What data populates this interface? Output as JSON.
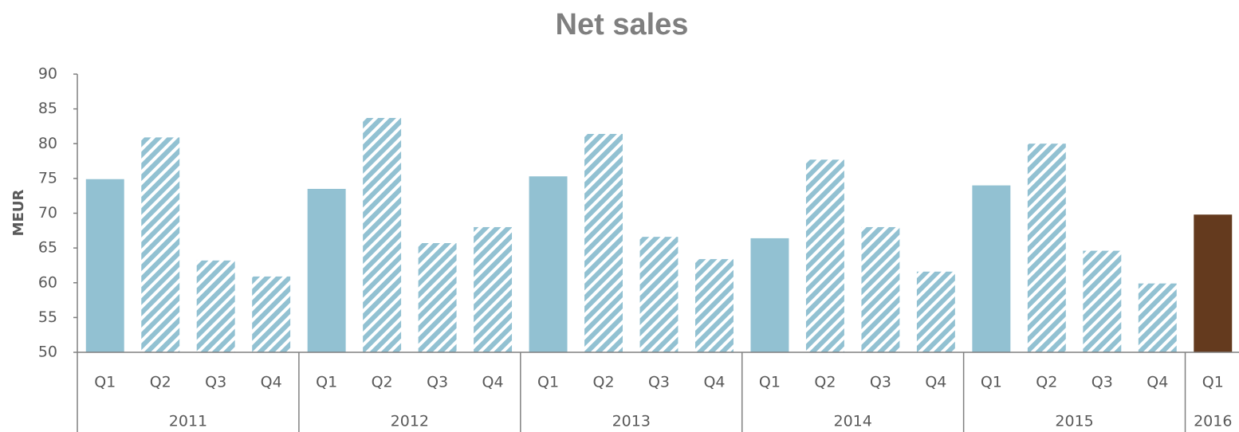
{
  "chart_data": {
    "type": "bar",
    "title": "Net sales",
    "y_label": "MEUR",
    "ylim": [
      50,
      90
    ],
    "yticks": [
      50,
      55,
      60,
      65,
      70,
      75,
      80,
      85,
      90
    ],
    "grid": false,
    "color": "#92c1d2",
    "highlight_color": "#643a1e",
    "groups": [
      {
        "name": "2011",
        "categories": [
          "Q1",
          "Q2",
          "Q3",
          "Q4"
        ],
        "values": [
          74.9,
          80.9,
          63.2,
          60.9
        ],
        "patterns": [
          "solid",
          "hatched",
          "hatched",
          "hatched"
        ]
      },
      {
        "name": "2012",
        "categories": [
          "Q1",
          "Q2",
          "Q3",
          "Q4"
        ],
        "values": [
          73.5,
          83.7,
          65.7,
          68.0
        ],
        "patterns": [
          "solid",
          "hatched",
          "hatched",
          "hatched"
        ]
      },
      {
        "name": "2013",
        "categories": [
          "Q1",
          "Q2",
          "Q3",
          "Q4"
        ],
        "values": [
          75.3,
          81.4,
          66.6,
          63.4
        ],
        "patterns": [
          "solid",
          "hatched",
          "hatched",
          "hatched"
        ]
      },
      {
        "name": "2014",
        "categories": [
          "Q1",
          "Q2",
          "Q3",
          "Q4"
        ],
        "values": [
          66.4,
          77.7,
          68.0,
          61.6
        ],
        "patterns": [
          "solid",
          "hatched",
          "hatched",
          "hatched"
        ]
      },
      {
        "name": "2015",
        "categories": [
          "Q1",
          "Q2",
          "Q3",
          "Q4"
        ],
        "values": [
          74.0,
          80.0,
          64.6,
          59.9
        ],
        "patterns": [
          "solid",
          "hatched",
          "hatched",
          "hatched"
        ]
      },
      {
        "name": "2016",
        "categories": [
          "Q1"
        ],
        "values": [
          69.8
        ],
        "patterns": [
          "highlight"
        ]
      }
    ]
  }
}
